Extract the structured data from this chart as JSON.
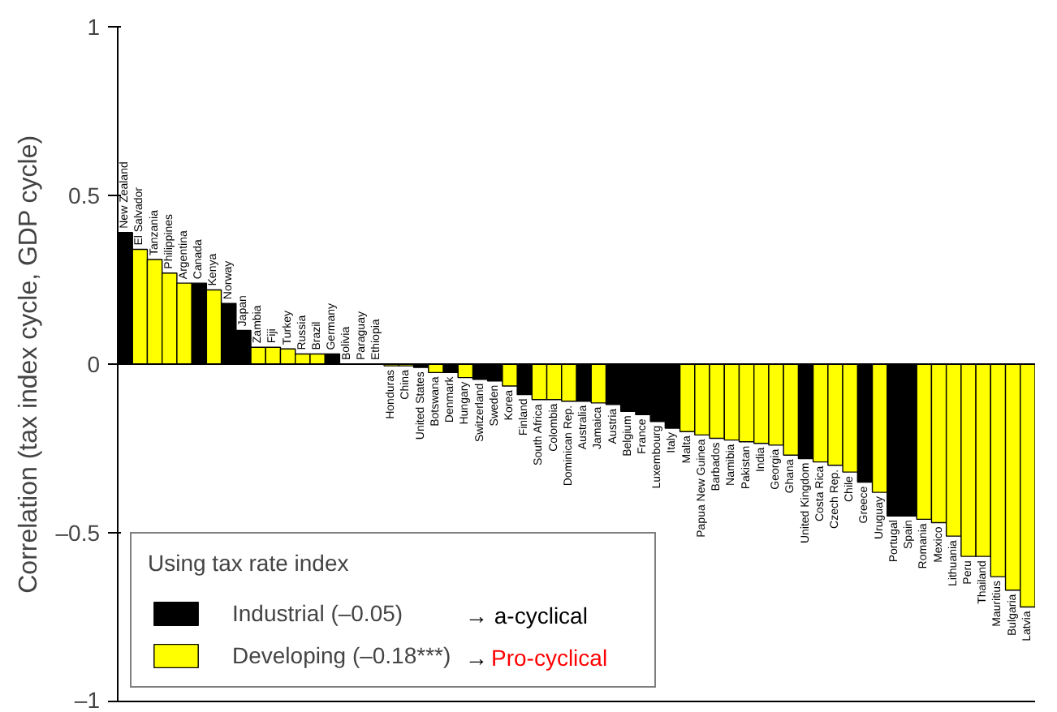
{
  "chart_data": {
    "type": "bar",
    "ylabel": "Correlation (tax index cycle, GDP cycle)",
    "categories": [
      "New Zealand",
      "El Salvador",
      "Tanzania",
      "Philippines",
      "Argentina",
      "Canada",
      "Kenya",
      "Norway",
      "Japan",
      "Zambia",
      "Fiji",
      "Turkey",
      "Russia",
      "Brazil",
      "Germany",
      "Bolivia",
      "Paraguay",
      "Ethiopia",
      "Honduras",
      "China",
      "United States",
      "Botswana",
      "Denmark",
      "Hungary",
      "Switzerland",
      "Sweden",
      "Korea",
      "Finland",
      "South Africa",
      "Colombia",
      "Dominican Rep.",
      "Australia",
      "Jamaica",
      "Austria",
      "Belgium",
      "France",
      "Luxembourg",
      "Italy",
      "Malta",
      "Papua New Guinea",
      "Barbados",
      "Namibia",
      "Pakistan",
      "India",
      "Georgia",
      "Ghana",
      "United Kingdom",
      "Costa Rica",
      "Czech Rep.",
      "Chile",
      "Greece",
      "Uruguay",
      "Portugal",
      "Spain",
      "Romania",
      "Mexico",
      "Lithuania",
      "Peru",
      "Thailand",
      "Mauritius",
      "Bulgaria",
      "Latvia"
    ],
    "series": [
      {
        "name": "Industrial (–0.05)",
        "color": "#000000",
        "values": [
          0.39,
          null,
          null,
          null,
          null,
          0.24,
          null,
          0.18,
          0.1,
          null,
          null,
          null,
          null,
          null,
          0.03,
          null,
          null,
          null,
          null,
          null,
          -0.01,
          null,
          -0.025,
          null,
          -0.045,
          -0.05,
          null,
          -0.09,
          null,
          null,
          null,
          -0.11,
          null,
          -0.12,
          -0.14,
          -0.15,
          -0.17,
          -0.19,
          null,
          null,
          null,
          null,
          null,
          null,
          null,
          null,
          -0.28,
          null,
          null,
          null,
          -0.35,
          null,
          -0.45,
          -0.45,
          null,
          null,
          null,
          null,
          null,
          null,
          null,
          null
        ]
      },
      {
        "name": "Developing (–0.18***)",
        "color": "#ffff00",
        "values": [
          null,
          0.34,
          0.31,
          0.27,
          0.24,
          null,
          0.22,
          null,
          null,
          0.05,
          0.05,
          0.045,
          0.03,
          0.03,
          null,
          0,
          0,
          0,
          -0.005,
          -0.005,
          null,
          -0.025,
          null,
          -0.04,
          null,
          null,
          -0.065,
          null,
          -0.105,
          -0.105,
          -0.11,
          null,
          -0.115,
          null,
          null,
          null,
          null,
          null,
          -0.2,
          -0.21,
          -0.22,
          -0.225,
          -0.23,
          -0.235,
          -0.24,
          -0.27,
          null,
          -0.29,
          -0.3,
          -0.32,
          null,
          -0.38,
          null,
          null,
          -0.46,
          -0.47,
          -0.51,
          -0.57,
          -0.57,
          -0.63,
          -0.67,
          -0.72
        ]
      }
    ],
    "ylim": [
      -1,
      1
    ],
    "yticks": [
      {
        "value": -1,
        "label": "–1"
      },
      {
        "value": -0.5,
        "label": "–0.5"
      },
      0,
      0.5,
      1
    ],
    "tick_labels": "y",
    "grid": false,
    "legend": "bottom left",
    "legend_title": "Using tax rate index",
    "annotations": [
      "→ a-cyclical",
      "→",
      "Pro-cyclical"
    ],
    "ref_lines": [
      {
        "axis": "y",
        "value": 0
      }
    ]
  }
}
